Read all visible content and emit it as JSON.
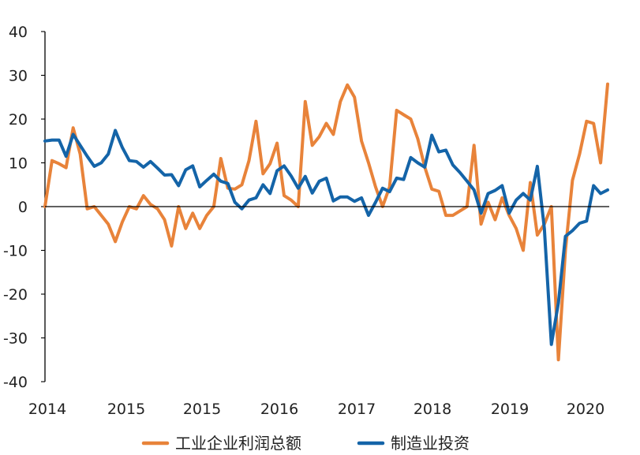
{
  "chart_data": {
    "type": "line",
    "title": "",
    "xlabel": "",
    "ylabel": "",
    "ylim": [
      -40,
      40
    ],
    "yticks": [
      40,
      30,
      20,
      10,
      0,
      -10,
      -20,
      -30,
      -40
    ],
    "xticks": [
      {
        "label": "2014",
        "pos": 0
      },
      {
        "label": "2015",
        "pos": 10.5
      },
      {
        "label": "2015",
        "pos": 21.0
      },
      {
        "label": "2016",
        "pos": 31.5
      },
      {
        "label": "2017",
        "pos": 42.5
      },
      {
        "label": "2018",
        "pos": 53.0
      },
      {
        "label": "2019",
        "pos": 63.0
      },
      {
        "label": "2020",
        "pos": 73.5
      }
    ],
    "xlim": [
      0,
      78
    ],
    "grid": false,
    "legend_position": "bottom",
    "series": [
      {
        "name": "工业企业利润总额",
        "color": "#E8833A",
        "points": [
          [
            0,
            0
          ],
          [
            1,
            10.5
          ],
          [
            2,
            9.8
          ],
          [
            3,
            8.9
          ],
          [
            4,
            18
          ],
          [
            5,
            12
          ],
          [
            6,
            -0.5
          ],
          [
            7,
            0
          ],
          [
            8,
            -2
          ],
          [
            9,
            -4
          ],
          [
            10,
            -8
          ],
          [
            11,
            -3.5
          ],
          [
            12,
            0
          ],
          [
            13,
            -0.5
          ],
          [
            14,
            2.5
          ],
          [
            15,
            0.5
          ],
          [
            16,
            -0.5
          ],
          [
            17,
            -3
          ],
          [
            18,
            -9
          ],
          [
            19,
            0
          ],
          [
            20,
            -5
          ],
          [
            21,
            -1.5
          ],
          [
            22,
            -5
          ],
          [
            23,
            -2
          ],
          [
            24,
            0
          ],
          [
            25,
            11
          ],
          [
            26,
            4.2
          ],
          [
            27,
            4
          ],
          [
            28,
            5
          ],
          [
            29,
            10.5
          ],
          [
            30,
            19.5
          ],
          [
            31,
            7.5
          ],
          [
            32,
            9.8
          ],
          [
            33,
            14.5
          ],
          [
            34,
            2.5
          ],
          [
            35,
            1.5
          ],
          [
            36,
            0
          ],
          [
            37,
            24
          ],
          [
            38,
            14
          ],
          [
            39,
            16
          ],
          [
            40,
            19
          ],
          [
            41,
            16.5
          ],
          [
            42,
            24
          ],
          [
            43,
            27.8
          ],
          [
            44,
            25
          ],
          [
            45,
            15
          ],
          [
            46,
            10
          ],
          [
            47,
            4.5
          ],
          [
            48,
            0
          ],
          [
            49,
            4.5
          ],
          [
            50,
            22
          ],
          [
            51,
            21
          ],
          [
            52,
            20
          ],
          [
            53,
            15.5
          ],
          [
            54,
            9
          ],
          [
            55,
            4
          ],
          [
            56,
            3.5
          ],
          [
            57,
            -2
          ],
          [
            58,
            -2
          ],
          [
            59,
            -1
          ],
          [
            60,
            0
          ],
          [
            61,
            14
          ],
          [
            62,
            -4
          ],
          [
            63,
            1
          ],
          [
            64,
            -3
          ],
          [
            65,
            2
          ],
          [
            66,
            -2
          ],
          [
            67,
            -5
          ],
          [
            68,
            -10
          ],
          [
            69,
            5.5
          ],
          [
            70,
            -6.5
          ],
          [
            71,
            -4
          ],
          [
            72,
            0
          ],
          [
            73,
            -35
          ],
          [
            74,
            -10
          ],
          [
            75,
            6
          ],
          [
            76,
            12
          ],
          [
            77,
            19.5
          ],
          [
            78,
            19
          ],
          [
            79,
            10
          ],
          [
            80,
            28
          ]
        ]
      },
      {
        "name": "制造业投资",
        "color": "#1464A8",
        "points": [
          [
            0,
            15
          ],
          [
            1,
            15.2
          ],
          [
            2,
            15.2
          ],
          [
            3,
            11.5
          ],
          [
            4,
            16.5
          ],
          [
            5,
            14
          ],
          [
            6,
            11.5
          ],
          [
            7,
            9.2
          ],
          [
            8,
            10
          ],
          [
            9,
            12
          ],
          [
            10,
            17.4
          ],
          [
            11,
            13.5
          ],
          [
            12,
            10.5
          ],
          [
            13,
            10.3
          ],
          [
            14,
            9
          ],
          [
            15,
            10.3
          ],
          [
            16,
            8.8
          ],
          [
            17,
            7.2
          ],
          [
            18,
            7.3
          ],
          [
            19,
            4.8
          ],
          [
            20,
            8.4
          ],
          [
            21,
            9.3
          ],
          [
            22,
            4.5
          ],
          [
            23,
            6
          ],
          [
            24,
            7.4
          ],
          [
            25,
            5.8
          ],
          [
            26,
            5.3
          ],
          [
            27,
            1
          ],
          [
            28,
            -0.5
          ],
          [
            29,
            1.5
          ],
          [
            30,
            2
          ],
          [
            31,
            5
          ],
          [
            32,
            3
          ],
          [
            33,
            8.2
          ],
          [
            34,
            9.3
          ],
          [
            35,
            7
          ],
          [
            36,
            4.2
          ],
          [
            37,
            6.9
          ],
          [
            38,
            3.1
          ],
          [
            39,
            5.8
          ],
          [
            40,
            6.5
          ],
          [
            41,
            1.3
          ],
          [
            42,
            2.2
          ],
          [
            43,
            2.2
          ],
          [
            44,
            1.2
          ],
          [
            45,
            2
          ],
          [
            46,
            -2
          ],
          [
            47,
            1
          ],
          [
            48,
            4.2
          ],
          [
            49,
            3.4
          ],
          [
            50,
            6.5
          ],
          [
            51,
            6.2
          ],
          [
            52,
            11.2
          ],
          [
            53,
            10
          ],
          [
            54,
            9
          ],
          [
            55,
            16.3
          ],
          [
            56,
            12.5
          ],
          [
            57,
            12.9
          ],
          [
            58,
            9.5
          ],
          [
            59,
            7.8
          ],
          [
            60,
            5.8
          ],
          [
            61,
            3.8
          ],
          [
            62,
            -1.5
          ],
          [
            63,
            3
          ],
          [
            64,
            3.7
          ],
          [
            65,
            4.8
          ],
          [
            66,
            -1.5
          ],
          [
            67,
            1.5
          ],
          [
            68,
            3
          ],
          [
            69,
            1.5
          ],
          [
            70,
            9.2
          ],
          [
            71,
            -5
          ],
          [
            72,
            -31.5
          ],
          [
            73,
            -22
          ],
          [
            74,
            -6.8
          ],
          [
            75,
            -5.5
          ],
          [
            76,
            -3.8
          ],
          [
            77,
            -3.3
          ],
          [
            78,
            4.8
          ],
          [
            79,
            3
          ],
          [
            80,
            3.8
          ]
        ]
      }
    ]
  }
}
